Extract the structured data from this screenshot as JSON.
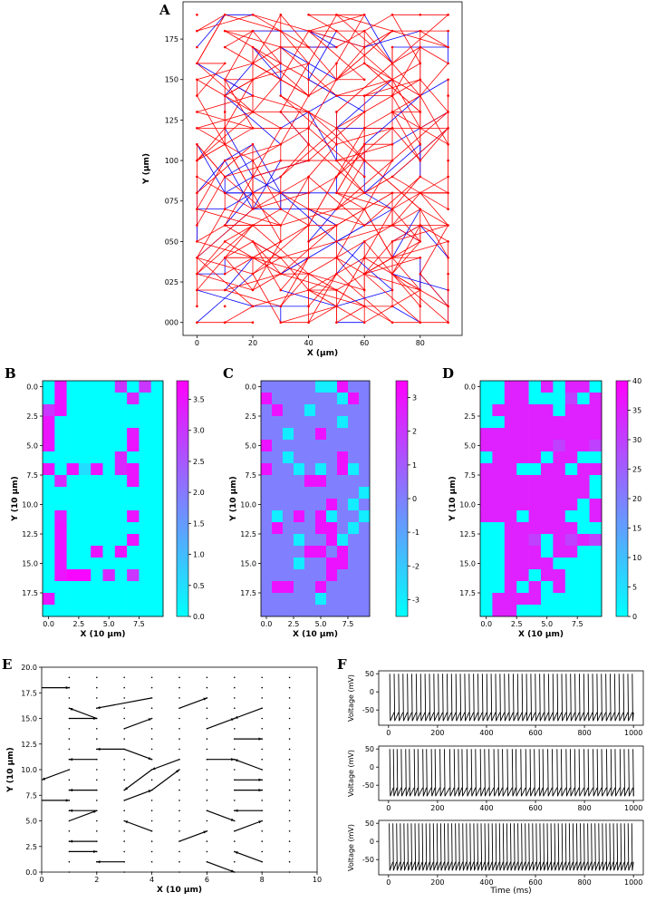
{
  "chart_data": [
    {
      "type": "network",
      "label": "A",
      "xlabel": "X (μm)",
      "ylabel": "Y (μm)",
      "xlim": [
        -5,
        95
      ],
      "ylim": [
        -8,
        198
      ],
      "xticks": [
        0,
        20,
        40,
        60,
        80
      ],
      "yticks": [
        {
          "value": 0,
          "label": "000"
        },
        {
          "value": 25,
          "label": "025"
        },
        {
          "value": 50,
          "label": "050"
        },
        {
          "value": 75,
          "label": "075"
        },
        100,
        125,
        150,
        175
      ],
      "grid_x": [
        0,
        10,
        20,
        30,
        40,
        50,
        60,
        70,
        80,
        90
      ],
      "grid_y": [
        0,
        10,
        20,
        30,
        40,
        50,
        60,
        70,
        80,
        90,
        100,
        110,
        120,
        130,
        140,
        150,
        160,
        170,
        180,
        190
      ],
      "edge_colors": [
        "#ff0000",
        "#0000ff"
      ],
      "node_color": "#ff0000"
    },
    {
      "type": "heatmap",
      "label": "B",
      "xlabel": "X (10 μm)",
      "ylabel": "Y (10 μm)",
      "xlim": [
        -0.5,
        9.5
      ],
      "ylim": [
        19.5,
        -0.5
      ],
      "xticks": [
        {
          "value": 0,
          "label": "0.0"
        },
        2.5,
        {
          "value": 5,
          "label": "5.0"
        },
        7.5
      ],
      "yticks": [
        {
          "value": 0,
          "label": "0.0"
        },
        2.5,
        {
          "value": 5,
          "label": "5.0"
        },
        7.5,
        {
          "value": 10,
          "label": "10.0"
        },
        12.5,
        {
          "value": 15,
          "label": "15.0"
        },
        17.5
      ],
      "colormap": "cool",
      "clim": [
        0,
        3.8
      ],
      "cticks": [
        {
          "value": 0,
          "label": "0.0"
        },
        0.5,
        {
          "value": 1,
          "label": "1.0"
        },
        1.5,
        {
          "value": 2,
          "label": "2.0"
        },
        2.5,
        {
          "value": 3,
          "label": "3.0"
        },
        3.5
      ],
      "z": [
        [
          0,
          3.5,
          0,
          0,
          0,
          0,
          3,
          0,
          3,
          0
        ],
        [
          0,
          3.5,
          0,
          0,
          0,
          0,
          0,
          3.2,
          0,
          0
        ],
        [
          3,
          3.5,
          0,
          0,
          0,
          0,
          0,
          0,
          0,
          0
        ],
        [
          3.5,
          0,
          0,
          0,
          0,
          0,
          0,
          0,
          0,
          0
        ],
        [
          3.5,
          0,
          0,
          0,
          0,
          0,
          0,
          3.4,
          0,
          0
        ],
        [
          3.5,
          0,
          0,
          0,
          0,
          0,
          0,
          3.5,
          0,
          0
        ],
        [
          0,
          0,
          0,
          0,
          0,
          0,
          3.2,
          0,
          0,
          0
        ],
        [
          3.5,
          0,
          3.5,
          0.5,
          3.5,
          0,
          3.2,
          3.5,
          0,
          0
        ],
        [
          0,
          3.2,
          0,
          0,
          0,
          0,
          0,
          3.5,
          0,
          0
        ],
        [
          0,
          0,
          0,
          0,
          0,
          0,
          0,
          0,
          0,
          0
        ],
        [
          0,
          0,
          0,
          0,
          0,
          0,
          0,
          0,
          0,
          0
        ],
        [
          0,
          3.4,
          0,
          0,
          0,
          0,
          0,
          3.5,
          0,
          0
        ],
        [
          0,
          3.5,
          0,
          0,
          0,
          0,
          0,
          0,
          0,
          0
        ],
        [
          0,
          3.5,
          0,
          0,
          0,
          0,
          0,
          3.5,
          0,
          0
        ],
        [
          0,
          3.5,
          0,
          0,
          3.5,
          0,
          3.5,
          0,
          0,
          0
        ],
        [
          0,
          3.5,
          0,
          0,
          0,
          0,
          0,
          0,
          0,
          0
        ],
        [
          0,
          3.5,
          3.7,
          3.7,
          0,
          3.2,
          0,
          3,
          0,
          0
        ],
        [
          0,
          0,
          0,
          0,
          0,
          0,
          0,
          0,
          0,
          0
        ],
        [
          3.5,
          0,
          0,
          0,
          0,
          0,
          0,
          0,
          0,
          0
        ],
        [
          0,
          0,
          0,
          0,
          0,
          0,
          0,
          0,
          0,
          0
        ]
      ]
    },
    {
      "type": "heatmap",
      "label": "C",
      "xlabel": "X (10 μm)",
      "ylabel": "Y (10 μm)",
      "xlim": [
        -0.5,
        9.5
      ],
      "ylim": [
        19.5,
        -0.5
      ],
      "xticks": [
        {
          "value": 0,
          "label": "0.0"
        },
        2.5,
        {
          "value": 5,
          "label": "5.0"
        },
        7.5
      ],
      "yticks": [
        {
          "value": 0,
          "label": "0.0"
        },
        2.5,
        {
          "value": 5,
          "label": "5.0"
        },
        7.5,
        {
          "value": 10,
          "label": "10.0"
        },
        12.5,
        {
          "value": 15,
          "label": "15.0"
        },
        17.5
      ],
      "colormap": "cool",
      "clim": [
        -3.5,
        3.5
      ],
      "cticks": [
        -3,
        -2,
        -1,
        0,
        1,
        2,
        3
      ],
      "z": [
        [
          0,
          0,
          0,
          0,
          0,
          -3,
          -3,
          3,
          0,
          0
        ],
        [
          3,
          0,
          0,
          0,
          0,
          0,
          0,
          -3,
          3,
          0
        ],
        [
          0,
          3,
          0,
          0,
          -3,
          0,
          0,
          0,
          0,
          0
        ],
        [
          0,
          0,
          0,
          0,
          0,
          0,
          0,
          -3,
          0,
          0
        ],
        [
          0,
          0,
          -3,
          0,
          0,
          3,
          0,
          0,
          0,
          0
        ],
        [
          3,
          0,
          0,
          0,
          0,
          0,
          0,
          0,
          0,
          0
        ],
        [
          0,
          0,
          -3,
          0,
          0,
          0,
          0,
          3,
          0,
          0
        ],
        [
          3,
          0,
          0,
          -3,
          0,
          -3,
          0,
          3,
          -3,
          0
        ],
        [
          0,
          0,
          0,
          0,
          3,
          3,
          0,
          0,
          0,
          0
        ],
        [
          0,
          0,
          0,
          0,
          0,
          0,
          0,
          0,
          0,
          -3
        ],
        [
          0,
          0,
          0,
          0,
          0,
          0,
          3,
          0,
          -3,
          0
        ],
        [
          0,
          -3,
          0,
          3,
          0,
          3,
          -3,
          0,
          0,
          -3
        ],
        [
          0,
          3,
          0,
          0,
          0,
          3,
          3,
          0,
          -3,
          0
        ],
        [
          0,
          0,
          0,
          -3,
          0,
          0,
          3,
          -3,
          0,
          0
        ],
        [
          0,
          0,
          0,
          0,
          3,
          3,
          0,
          3,
          0,
          0
        ],
        [
          0,
          0,
          0,
          -3,
          0,
          0,
          3,
          3,
          0,
          0
        ],
        [
          0,
          0,
          0,
          0,
          0,
          0,
          3,
          0,
          0,
          0
        ],
        [
          0,
          3,
          3,
          0,
          0,
          3,
          0,
          0,
          0,
          0
        ],
        [
          0,
          0,
          0,
          0,
          0,
          -3,
          0,
          0,
          0,
          0
        ],
        [
          0,
          0,
          0,
          0,
          0,
          0,
          0,
          0,
          0,
          0
        ]
      ]
    },
    {
      "type": "heatmap",
      "label": "D",
      "xlabel": "X (10 μm)",
      "ylabel": "Y (10 μm)",
      "xlim": [
        -0.5,
        9.5
      ],
      "ylim": [
        19.5,
        -0.5
      ],
      "xticks": [
        {
          "value": 0,
          "label": "0.0"
        },
        2.5,
        {
          "value": 5,
          "label": "5.0"
        },
        7.5
      ],
      "yticks": [
        {
          "value": 0,
          "label": "0.0"
        },
        2.5,
        {
          "value": 5,
          "label": "5.0"
        },
        7.5,
        {
          "value": 10,
          "label": "10.0"
        },
        12.5,
        {
          "value": 15,
          "label": "15.0"
        },
        17.5
      ],
      "colormap": "cool",
      "clim": [
        0,
        40
      ],
      "cticks": [
        0,
        5,
        10,
        15,
        20,
        25,
        30,
        35,
        40
      ],
      "z": [
        [
          0,
          0,
          35,
          35,
          0,
          35,
          0,
          35,
          35,
          0
        ],
        [
          0,
          0,
          35,
          35,
          0,
          0,
          0,
          30,
          0,
          35
        ],
        [
          0,
          35,
          35,
          35,
          35,
          35,
          0,
          35,
          35,
          35
        ],
        [
          0,
          0,
          35,
          35,
          35,
          35,
          35,
          35,
          35,
          35
        ],
        [
          35,
          35,
          35,
          35,
          35,
          35,
          35,
          35,
          35,
          35
        ],
        [
          35,
          35,
          35,
          35,
          35,
          35,
          30,
          35,
          35,
          30
        ],
        [
          0,
          35,
          35,
          35,
          35,
          0,
          35,
          35,
          0,
          0
        ],
        [
          35,
          35,
          35,
          0,
          0,
          35,
          35,
          0,
          35,
          35
        ],
        [
          35,
          35,
          35,
          35,
          35,
          35,
          35,
          35,
          35,
          0
        ],
        [
          35,
          35,
          35,
          35,
          35,
          35,
          35,
          35,
          35,
          0
        ],
        [
          35,
          35,
          35,
          35,
          35,
          35,
          35,
          35,
          0,
          35
        ],
        [
          35,
          35,
          35,
          0,
          35,
          35,
          35,
          0,
          0,
          35
        ],
        [
          0,
          0,
          35,
          35,
          35,
          35,
          35,
          35,
          0,
          0
        ],
        [
          0,
          0,
          35,
          35,
          30,
          0,
          35,
          30,
          35,
          30
        ],
        [
          0,
          0,
          35,
          35,
          35,
          0,
          35,
          35,
          0,
          0
        ],
        [
          0,
          0,
          35,
          35,
          35,
          35,
          0,
          0,
          0,
          0
        ],
        [
          0,
          0,
          35,
          35,
          0,
          35,
          35,
          0,
          0,
          0
        ],
        [
          0,
          0,
          35,
          0,
          35,
          0,
          35,
          0,
          0,
          0
        ],
        [
          0,
          35,
          35,
          35,
          35,
          0,
          0,
          0,
          0,
          0
        ],
        [
          0,
          35,
          35,
          0,
          0,
          0,
          0,
          0,
          0,
          0
        ]
      ]
    },
    {
      "type": "quiver",
      "label": "E",
      "xlabel": "X (10 μm)",
      "ylabel": "Y (10 μm)",
      "xlim": [
        0,
        10
      ],
      "ylim": [
        0,
        20
      ],
      "xticks": [
        0,
        2,
        4,
        6,
        8,
        10
      ],
      "yticks": [
        {
          "value": 0,
          "label": "0.0"
        },
        2.5,
        {
          "value": 5,
          "label": "5.0"
        },
        7.5,
        {
          "value": 10,
          "label": "10.0"
        },
        12.5,
        {
          "value": 15,
          "label": "15.0"
        },
        17.5,
        {
          "value": 20,
          "label": "20.0"
        }
      ],
      "color": "#000000",
      "x": [
        0,
        2,
        3,
        4,
        1,
        3,
        5,
        7,
        8,
        2,
        6,
        4,
        3,
        5,
        7,
        1,
        2,
        6,
        8,
        0,
        3,
        4,
        7,
        1,
        2,
        6,
        8,
        4,
        7,
        2,
        5,
        1,
        6,
        3,
        8
      ],
      "y": [
        18,
        15,
        14,
        17,
        15,
        12,
        16,
        13,
        16,
        11,
        14,
        10,
        12,
        11,
        9,
        10,
        8,
        11,
        10,
        7,
        7,
        8,
        8,
        5,
        6,
        6,
        6,
        4,
        4,
        3,
        3,
        2,
        1,
        1,
        1
      ],
      "u": [
        1,
        -1,
        1,
        -2,
        1,
        1,
        1,
        1,
        -1,
        -1,
        1,
        -1,
        -1,
        -1,
        1,
        -1,
        -1,
        1,
        -1,
        1,
        1,
        1,
        1,
        1,
        -1,
        1,
        -1,
        -1,
        1,
        -1,
        1,
        1,
        1,
        -1,
        -1
      ],
      "v": [
        0,
        1,
        1,
        -1,
        0,
        -1,
        1,
        0,
        -1,
        0,
        1,
        -2,
        0,
        -1,
        0,
        -1,
        0,
        0,
        1,
        0,
        1,
        2,
        0,
        1,
        0,
        -1,
        0,
        1,
        1,
        0,
        1,
        0,
        -1,
        0,
        1
      ]
    },
    {
      "type": "spikes",
      "label": "F",
      "ylabel": "Voltage (mV)",
      "xlabel": "Time (ms)",
      "xlim": [
        -40,
        1040
      ],
      "xticks": [
        0,
        200,
        400,
        600,
        800,
        1000
      ],
      "ylim": [
        -92,
        58
      ],
      "yticks": [
        -50,
        0,
        50
      ],
      "peak": 50,
      "reset": -80,
      "color": "#000000",
      "traces": [
        {
          "spikes": [
            5,
            23,
            41,
            59,
            77,
            95,
            113,
            131,
            149,
            167,
            185,
            203,
            221,
            239,
            257,
            275,
            293,
            311,
            329,
            347,
            365,
            383,
            401,
            419,
            437,
            455,
            473,
            491,
            509,
            527,
            545,
            563,
            581,
            599,
            617,
            635,
            653,
            671,
            689,
            707,
            725,
            743,
            761,
            779,
            797,
            815,
            833,
            851,
            869,
            887,
            905,
            923,
            941,
            959,
            977,
            995
          ]
        },
        {
          "spikes": [
            5,
            20,
            35,
            52,
            70,
            85,
            105,
            120,
            140,
            155,
            175,
            190,
            210,
            228,
            250,
            268,
            285,
            300,
            320,
            338,
            355,
            375,
            392,
            410,
            430,
            448,
            465,
            485,
            505,
            520,
            540,
            560,
            578,
            595,
            615,
            630,
            650,
            668,
            688,
            705,
            725,
            742,
            760,
            778,
            798,
            815,
            835,
            852,
            870,
            890,
            908,
            925,
            945,
            962,
            980,
            998
          ]
        },
        {
          "spikes": [
            3,
            18,
            33,
            48,
            63,
            78,
            93,
            108,
            123,
            138,
            153,
            168,
            183,
            198,
            213,
            228,
            243,
            258,
            273,
            288,
            303,
            318,
            333,
            348,
            363,
            378,
            393,
            408,
            423,
            438,
            453,
            468,
            483,
            498,
            513,
            528,
            543,
            558,
            573,
            588,
            603,
            618,
            633,
            648,
            663,
            678,
            693,
            708,
            723,
            738,
            753,
            768,
            783,
            798,
            813,
            828,
            843,
            858,
            873,
            888,
            903,
            918,
            933,
            948,
            963,
            978,
            993
          ]
        }
      ]
    }
  ]
}
